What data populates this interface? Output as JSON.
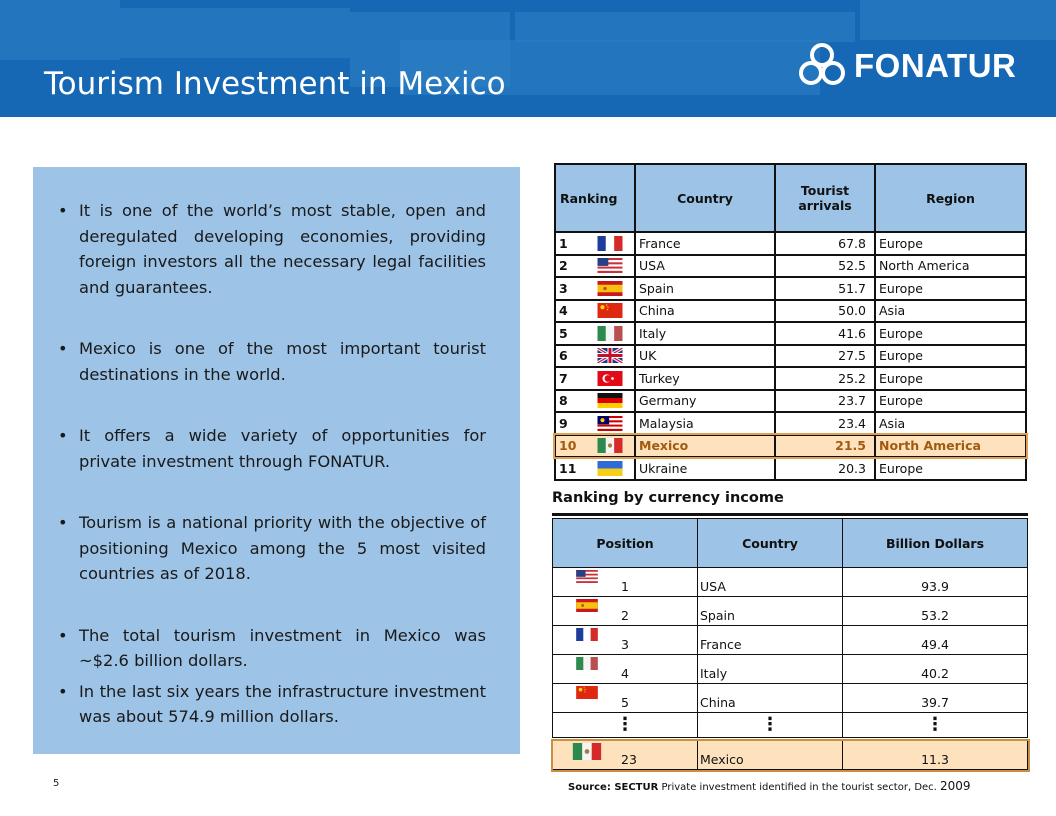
{
  "header": {
    "title": "Tourism Investment in Mexico",
    "logo_text": "FONATUR"
  },
  "bullets": [
    "It is one of the world’s most stable, open and deregulated developing economies, providing foreign investors all the necessary legal facilities and guarantees.",
    "Mexico is one of the most important tourist destinations in the world.",
    "It offers a wide variety of opportunities for private investment through FONATUR.",
    "Tourism is a national priority with the objective of positioning Mexico among the 5 most visited countries as of 2018.",
    "The total tourism investment in Mexico was ~$2.6  billion dollars.",
    "In the last six years the infrastructure investment was about 574.9 million dollars."
  ],
  "arrivals_table": {
    "headers": {
      "ranking": "Ranking",
      "country": "Country",
      "arrivals": "Tourist arrivals",
      "region": "Region"
    },
    "rows": [
      {
        "rank": "1",
        "country": "France",
        "arrivals": "67.8",
        "region": "Europe",
        "flag": "france-flag"
      },
      {
        "rank": "2",
        "country": "USA",
        "arrivals": "52.5",
        "region": "North America",
        "flag": "usa-flag"
      },
      {
        "rank": "3",
        "country": "Spain",
        "arrivals": "51.7",
        "region": "Europe",
        "flag": "spain-flag"
      },
      {
        "rank": "4",
        "country": "China",
        "arrivals": "50.0",
        "region": "Asia",
        "flag": "china-flag"
      },
      {
        "rank": "5",
        "country": "Italy",
        "arrivals": "41.6",
        "region": "Europe",
        "flag": "italy-flag"
      },
      {
        "rank": "6",
        "country": "UK",
        "arrivals": "27.5",
        "region": "Europe",
        "flag": "uk-flag"
      },
      {
        "rank": "7",
        "country": "Turkey",
        "arrivals": "25.2",
        "region": "Europe",
        "flag": "turkey-flag"
      },
      {
        "rank": "8",
        "country": "Germany",
        "arrivals": "23.7",
        "region": "Europe",
        "flag": "germany-flag"
      },
      {
        "rank": "9",
        "country": "Malaysia",
        "arrivals": "23.4",
        "region": "Asia",
        "flag": "malaysia-flag"
      },
      {
        "rank": "10",
        "country": "Mexico",
        "arrivals": "21.5",
        "region": "North America",
        "flag": "mexico-flag"
      },
      {
        "rank": "11",
        "country": "Ukraine",
        "arrivals": "20.3",
        "region": "Europe",
        "flag": "ukraine-flag"
      }
    ]
  },
  "currency_section_title": "Ranking by currency income",
  "currency_table": {
    "headers": {
      "position": "Position",
      "country": "Country",
      "billions": "Billion Dollars"
    },
    "rows": [
      {
        "position": "1",
        "country": "USA",
        "value": "93.9",
        "flag": "usa-flag"
      },
      {
        "position": "2",
        "country": "Spain",
        "value": "53.2",
        "flag": "spain-flag"
      },
      {
        "position": "3",
        "country": "France",
        "value": "49.4",
        "flag": "france-flag"
      },
      {
        "position": "4",
        "country": "Italy",
        "value": "40.2",
        "flag": "italy-flag"
      },
      {
        "position": "5",
        "country": "China",
        "value": "39.7",
        "flag": "china-flag"
      }
    ],
    "ellipsis": "⋮",
    "highlight": {
      "position": "23",
      "country": "Mexico",
      "value": "11.3",
      "flag": "mexico-flag"
    }
  },
  "footer": {
    "page_number": "5",
    "source_label": "Source: SECTUR",
    "source_text": " Private investment identified in the tourist sector, Dec. ",
    "source_year": "2009"
  },
  "colors": {
    "header_blue": "#1668b4",
    "panel_blue": "#9dc3e6",
    "highlight": "#fde2bd",
    "highlight_text": "#a25a10"
  }
}
